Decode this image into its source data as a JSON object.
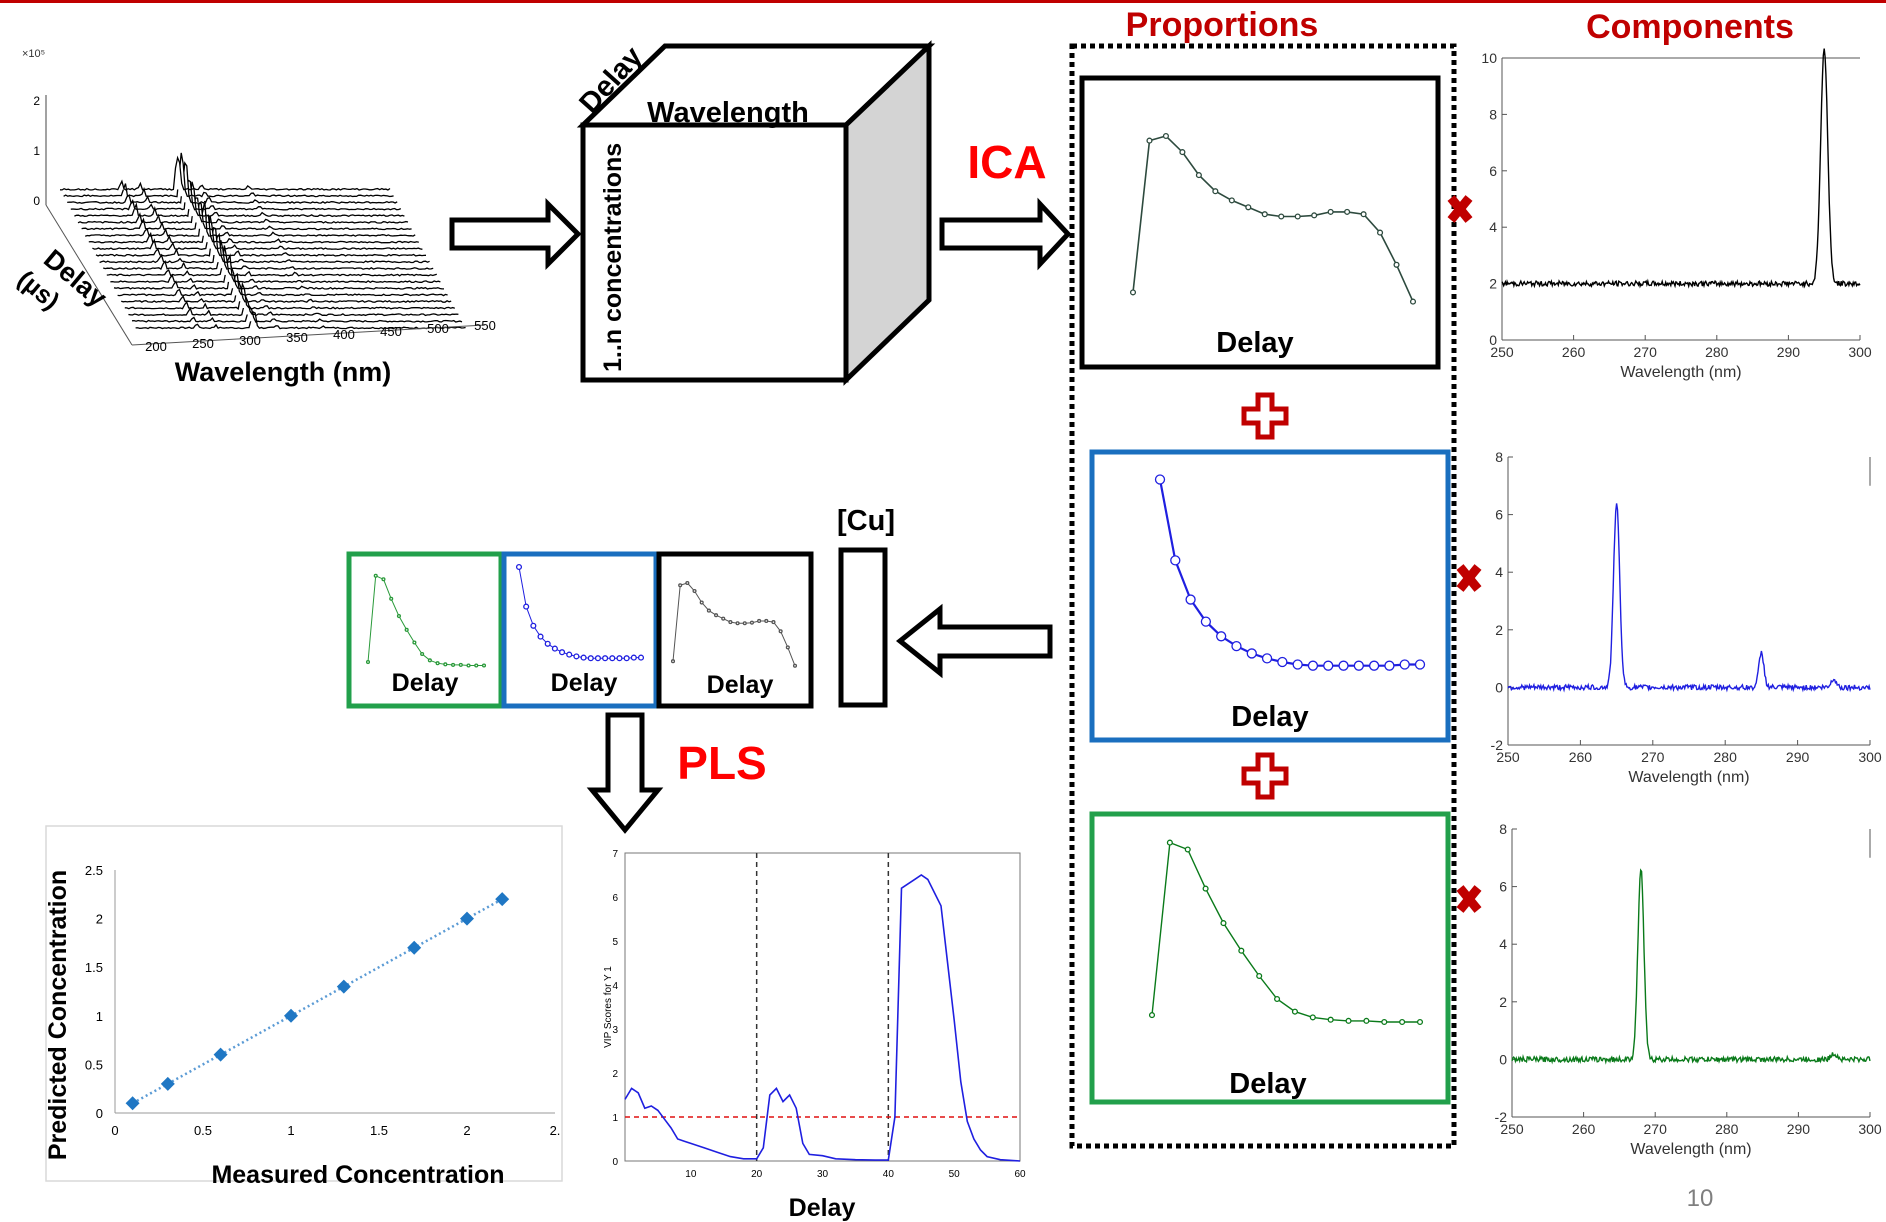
{
  "header": {
    "proportions_title": "Proportions",
    "components_title": "Components",
    "method_ica": "ICA",
    "method_pls": "PLS",
    "page_number": "10",
    "accent_color": "#c00000",
    "method_color": "#ff0000"
  },
  "cube": {
    "top_label": "Wavelength",
    "side_label": "Delay",
    "front_label": "1..n concentrations"
  },
  "waterfall": {
    "x_label": "Wavelength (nm)",
    "y_label_line1": "Delay",
    "y_label_line2": "(µs)",
    "z_multiplier": "×10⁵",
    "z_ticks": [
      "0",
      "1",
      "2"
    ],
    "x_ticks": [
      "200",
      "250",
      "300",
      "350",
      "400",
      "450",
      "500",
      "550"
    ]
  },
  "proportion_panels": [
    {
      "label": "Delay",
      "color": "#000000"
    },
    {
      "label": "Delay",
      "color": "#1a6fbf"
    },
    {
      "label": "Delay",
      "color": "#22a04b"
    }
  ],
  "small_panels": [
    {
      "label": "Delay",
      "color": "#22a04b"
    },
    {
      "label": "Delay",
      "color": "#1a6fbf"
    },
    {
      "label": "Delay",
      "color": "#000000"
    }
  ],
  "cu_label": "[Cu]",
  "chart_data": [
    {
      "type": "line",
      "name_id": "component-black",
      "color": "#000000",
      "xlabel": "Wavelength (nm)",
      "xlim": [
        250,
        300
      ],
      "ylim": [
        0,
        10
      ],
      "xticks": [
        "250",
        "260",
        "270",
        "280",
        "290",
        "300"
      ],
      "yticks": [
        "0",
        "2",
        "4",
        "6",
        "8",
        "10"
      ],
      "baseline": 2,
      "peaks": [
        {
          "x": 295,
          "y": 8.3,
          "w": 0.7
        }
      ]
    },
    {
      "type": "line",
      "name_id": "component-blue",
      "color": "#1f1fe0",
      "xlabel": "Wavelength (nm)",
      "xlim": [
        250,
        300
      ],
      "ylim": [
        -2,
        8
      ],
      "xticks": [
        "250",
        "260",
        "270",
        "280",
        "290",
        "300"
      ],
      "yticks": [
        "-2",
        "0",
        "2",
        "4",
        "6",
        "8"
      ],
      "baseline": 0,
      "peaks": [
        {
          "x": 265,
          "y": 6.4,
          "w": 0.6
        },
        {
          "x": 285,
          "y": 1.2,
          "w": 0.5
        },
        {
          "x": 295,
          "y": 0.3,
          "w": 0.5
        }
      ]
    },
    {
      "type": "line",
      "name_id": "component-green",
      "color": "#0a7a1a",
      "xlabel": "Wavelength (nm)",
      "xlim": [
        250,
        300
      ],
      "ylim": [
        -2,
        8
      ],
      "xticks": [
        "250",
        "260",
        "270",
        "280",
        "290",
        "300"
      ],
      "yticks": [
        "-2",
        "0",
        "2",
        "4",
        "6",
        "8"
      ],
      "baseline": 0,
      "peaks": [
        {
          "x": 268,
          "y": 6.6,
          "w": 0.6
        },
        {
          "x": 295,
          "y": 0.2,
          "w": 0.6
        }
      ]
    },
    {
      "type": "scatter",
      "name_id": "calibration",
      "xlabel": "Measured Concentration",
      "ylabel": "Predicted Concentration",
      "xlim": [
        0,
        2.5
      ],
      "ylim": [
        0,
        2.5
      ],
      "xticks": [
        "0",
        "0.5",
        "1",
        "1.5",
        "2",
        "2."
      ],
      "yticks": [
        "0",
        "0.5",
        "1",
        "1.5",
        "2",
        "2.5"
      ],
      "x": [
        0.1,
        0.3,
        0.6,
        1.0,
        1.3,
        1.7,
        2.0,
        2.2
      ],
      "y": [
        0.1,
        0.3,
        0.6,
        1.0,
        1.3,
        1.7,
        2.0,
        2.2
      ],
      "color": "#1f77c4"
    },
    {
      "type": "line",
      "name_id": "vip",
      "xlabel": "Delay",
      "ylabel": "VIP Scores for Y 1",
      "xlim": [
        0,
        60
      ],
      "ylim": [
        0,
        7
      ],
      "xticks": [
        "10",
        "20",
        "30",
        "40",
        "50",
        "60"
      ],
      "yticks": [
        "0",
        "1",
        "2",
        "3",
        "4",
        "5",
        "6",
        "7"
      ],
      "threshold": 1,
      "vlines": [
        20,
        40
      ],
      "x": [
        0,
        1,
        2,
        3,
        4,
        5,
        6,
        7,
        8,
        9,
        10,
        12,
        14,
        16,
        18,
        20,
        21,
        22,
        23,
        24,
        25,
        26,
        27,
        28,
        30,
        32,
        35,
        38,
        40,
        41,
        42,
        43,
        44,
        45,
        46,
        47,
        48,
        49,
        50,
        51,
        52,
        53,
        54,
        55,
        57,
        60
      ],
      "y": [
        1.4,
        1.65,
        1.55,
        1.2,
        1.25,
        1.15,
        0.95,
        0.75,
        0.5,
        0.45,
        0.4,
        0.3,
        0.2,
        0.1,
        0.05,
        0.05,
        0.3,
        1.5,
        1.65,
        1.35,
        1.5,
        1.2,
        0.4,
        0.15,
        0.12,
        0.05,
        0.03,
        0.02,
        0.02,
        1.0,
        6.2,
        6.3,
        6.4,
        6.5,
        6.4,
        6.1,
        5.8,
        4.5,
        3.2,
        1.8,
        0.9,
        0.5,
        0.25,
        0.1,
        0.03,
        0.0
      ],
      "color": "#1f1fe0"
    }
  ],
  "proportion_curves": {
    "black": [
      [
        0,
        1.2
      ],
      [
        1,
        7.8
      ],
      [
        2,
        8.0
      ],
      [
        3,
        7.3
      ],
      [
        4,
        6.3
      ],
      [
        5,
        5.6
      ],
      [
        6,
        5.2
      ],
      [
        7,
        4.9
      ],
      [
        8,
        4.6
      ],
      [
        9,
        4.5
      ],
      [
        10,
        4.5
      ],
      [
        11,
        4.55
      ],
      [
        12,
        4.7
      ],
      [
        13,
        4.7
      ],
      [
        14,
        4.6
      ],
      [
        15,
        3.8
      ],
      [
        16,
        2.4
      ],
      [
        17,
        0.8
      ]
    ],
    "blue": [
      [
        0,
        9.0
      ],
      [
        1,
        5.7
      ],
      [
        2,
        4.1
      ],
      [
        3,
        3.2
      ],
      [
        4,
        2.6
      ],
      [
        5,
        2.2
      ],
      [
        6,
        1.9
      ],
      [
        7,
        1.7
      ],
      [
        8,
        1.55
      ],
      [
        9,
        1.45
      ],
      [
        10,
        1.4
      ],
      [
        11,
        1.4
      ],
      [
        12,
        1.4
      ],
      [
        13,
        1.4
      ],
      [
        14,
        1.4
      ],
      [
        15,
        1.4
      ],
      [
        16,
        1.45
      ],
      [
        17,
        1.45
      ]
    ],
    "green": [
      [
        0,
        1.3
      ],
      [
        1,
        8.8
      ],
      [
        2,
        8.5
      ],
      [
        3,
        6.8
      ],
      [
        4,
        5.3
      ],
      [
        5,
        4.1
      ],
      [
        6,
        3.0
      ],
      [
        7,
        2.0
      ],
      [
        8,
        1.45
      ],
      [
        9,
        1.2
      ],
      [
        10,
        1.1
      ],
      [
        11,
        1.05
      ],
      [
        12,
        1.05
      ],
      [
        13,
        1.0
      ],
      [
        14,
        1.0
      ],
      [
        15,
        1.0
      ]
    ]
  }
}
